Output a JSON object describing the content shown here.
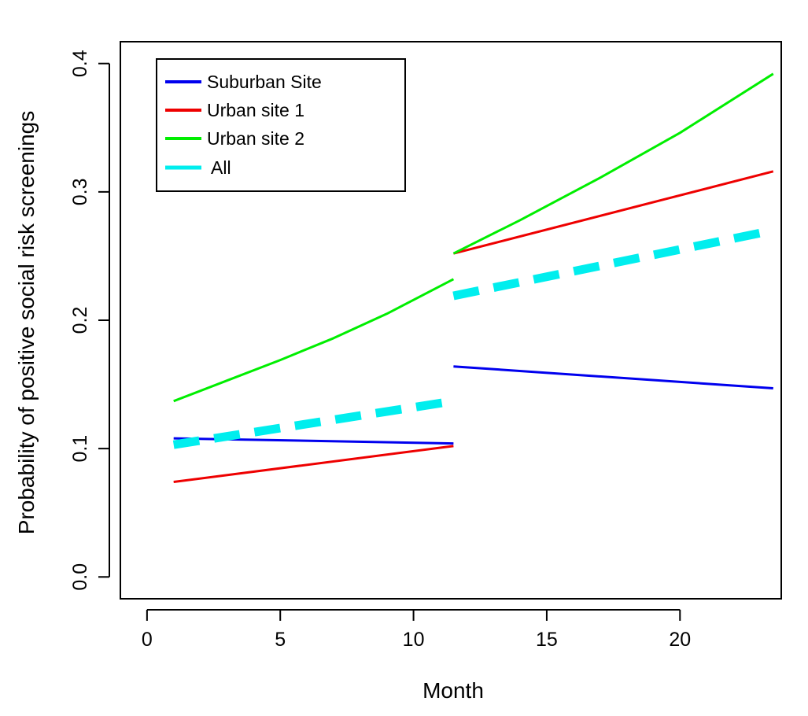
{
  "chart_data": {
    "type": "line",
    "title": "",
    "xlabel": "Month",
    "ylabel": "Probability of positive social risk screenings",
    "xlim": [
      -1,
      23.8
    ],
    "ylim": [
      -0.017,
      0.417
    ],
    "xticks": [
      0,
      5,
      10,
      15,
      20
    ],
    "yticks": [
      0.0,
      0.1,
      0.2,
      0.3,
      0.4
    ],
    "xtick_labels": [
      "0",
      "5",
      "10",
      "15",
      "20"
    ],
    "ytick_labels": [
      "0.0",
      "0.1",
      "0.2",
      "0.3",
      "0.4"
    ],
    "grid": false,
    "legend_position": "top-left",
    "series": [
      {
        "name": "Suburban Site",
        "color": "#0000ee",
        "style": "solid",
        "segments": [
          {
            "x": [
              1,
              11.5
            ],
            "y": [
              0.108,
              0.104
            ]
          },
          {
            "x": [
              11.5,
              23.5
            ],
            "y": [
              0.164,
              0.147
            ]
          }
        ]
      },
      {
        "name": "Urban site 1",
        "color": "#ee0000",
        "style": "solid",
        "segments": [
          {
            "x": [
              1,
              11.5
            ],
            "y": [
              0.074,
              0.102
            ]
          },
          {
            "x": [
              11.5,
              23.5
            ],
            "y": [
              0.252,
              0.316
            ]
          }
        ]
      },
      {
        "name": "Urban site 2",
        "color": "#00ee00",
        "style": "solid",
        "segments": [
          {
            "x": [
              1,
              3,
              5,
              7,
              9,
              11.5
            ],
            "y": [
              0.137,
              0.153,
              0.169,
              0.186,
              0.205,
              0.232
            ]
          },
          {
            "x": [
              11.5,
              14,
              17,
              20,
              23.5
            ],
            "y": [
              0.252,
              0.278,
              0.311,
              0.346,
              0.392
            ]
          }
        ]
      },
      {
        "name": "All",
        "color": "#00eeee",
        "style": "dashed",
        "segments": [
          {
            "x": [
              1,
              11.5
            ],
            "y": [
              0.103,
              0.137
            ]
          },
          {
            "x": [
              11.5,
              23.5
            ],
            "y": [
              0.219,
              0.27
            ]
          }
        ]
      }
    ]
  },
  "legend": {
    "items": [
      "Suburban Site",
      "Urban site 1",
      "Urban site 2",
      "All"
    ]
  }
}
